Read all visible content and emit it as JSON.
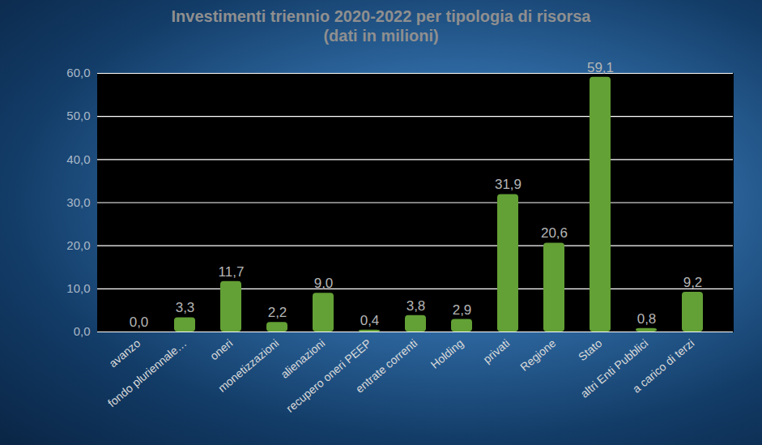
{
  "chart_data": {
    "type": "bar",
    "title": "Investimenti triennio 2020-2022 per tipologia di risorsa",
    "subtitle": "(dati in milioni)",
    "categories": [
      "avanzo",
      "fondo pluriennale…",
      "oneri",
      "monetizzazioni",
      "alienazioni",
      "recupero oneri PEEP",
      "entrate correnti",
      "Holding",
      "privati",
      "Regione",
      "Stato",
      "altri Enti Pubblici",
      "a carico di terzi"
    ],
    "values": [
      0.0,
      3.3,
      11.7,
      2.2,
      9.0,
      0.4,
      3.8,
      2.9,
      31.9,
      20.6,
      59.1,
      0.8,
      9.2
    ],
    "value_labels": [
      "0,0",
      "3,3",
      "11,7",
      "2,2",
      "9,0",
      "0,4",
      "3,8",
      "2,9",
      "31,9",
      "20,6",
      "59,1",
      "0,8",
      "9,2"
    ],
    "data_labels": true,
    "color": "#63a035",
    "ylim": [
      0,
      60
    ],
    "yticks": [
      {
        "value": 0,
        "label": "0,0"
      },
      {
        "value": 10,
        "label": "10,0"
      },
      {
        "value": 20,
        "label": "20,0"
      },
      {
        "value": 30,
        "label": "30,0"
      },
      {
        "value": 40,
        "label": "40,0"
      },
      {
        "value": 50,
        "label": "50,0"
      },
      {
        "value": 60,
        "label": "60,0"
      }
    ],
    "grid": true
  }
}
